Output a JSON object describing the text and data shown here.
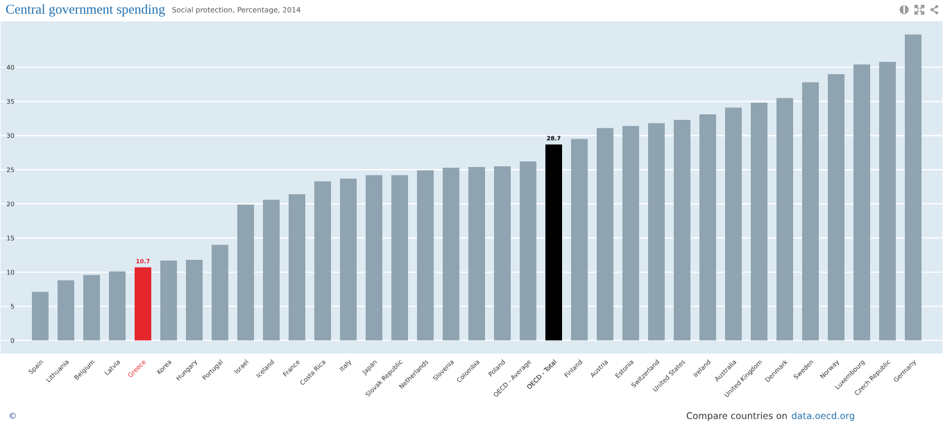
{
  "chart_data": {
    "type": "bar",
    "title": "Central government spending",
    "subtitle": "Social protection, Percentage, 2014",
    "categories": [
      "Spain",
      "Lithuania",
      "Belgium",
      "Latvia",
      "Greece",
      "Korea",
      "Hungary",
      "Portugal",
      "Israel",
      "Iceland",
      "France",
      "Costa Rica",
      "Italy",
      "Japan",
      "Slovak Republic",
      "Netherlands",
      "Slovenia",
      "Colombia",
      "Poland",
      "OECD - Average",
      "OECD - Total",
      "Finland",
      "Austria",
      "Estonia",
      "Switzerland",
      "United States",
      "Ireland",
      "Australia",
      "United Kingdom",
      "Denmark",
      "Sweden",
      "Norway",
      "Luxembourg",
      "Czech Republic",
      "Germany"
    ],
    "values": [
      7.1,
      8.8,
      9.6,
      10.1,
      10.7,
      11.7,
      11.8,
      14.0,
      19.9,
      20.6,
      21.4,
      23.3,
      23.7,
      24.2,
      24.2,
      24.9,
      25.3,
      25.4,
      25.5,
      26.2,
      28.7,
      29.5,
      31.1,
      31.4,
      31.8,
      32.3,
      33.1,
      34.1,
      34.8,
      35.5,
      37.8,
      39.0,
      40.4,
      40.8,
      44.8
    ],
    "colors": [
      "#8fa4b0",
      "#8fa4b0",
      "#8fa4b0",
      "#8fa4b0",
      "#e5272d",
      "#8fa4b0",
      "#8fa4b0",
      "#8fa4b0",
      "#8fa4b0",
      "#8fa4b0",
      "#8fa4b0",
      "#8fa4b0",
      "#8fa4b0",
      "#8fa4b0",
      "#8fa4b0",
      "#8fa4b0",
      "#8fa4b0",
      "#8fa4b0",
      "#8fa4b0",
      "#8fa4b0",
      "#000000",
      "#8fa4b0",
      "#8fa4b0",
      "#8fa4b0",
      "#8fa4b0",
      "#8fa4b0",
      "#8fa4b0",
      "#8fa4b0",
      "#8fa4b0",
      "#8fa4b0",
      "#8fa4b0",
      "#8fa4b0",
      "#8fa4b0",
      "#8fa4b0",
      "#8fa4b0"
    ],
    "value_labels": [
      null,
      null,
      null,
      null,
      "10.7",
      null,
      null,
      null,
      null,
      null,
      null,
      null,
      null,
      null,
      null,
      null,
      null,
      null,
      null,
      null,
      "28.7",
      null,
      null,
      null,
      null,
      null,
      null,
      null,
      null,
      null,
      null,
      null,
      null,
      null,
      null
    ],
    "ylim": [
      -2,
      46.8
    ],
    "yticks": [
      0,
      5,
      10,
      15,
      20,
      25,
      30,
      35,
      40
    ],
    "grid": "y",
    "annotations": [
      "©",
      "Compare countries on data.oecd.org"
    ]
  }
}
